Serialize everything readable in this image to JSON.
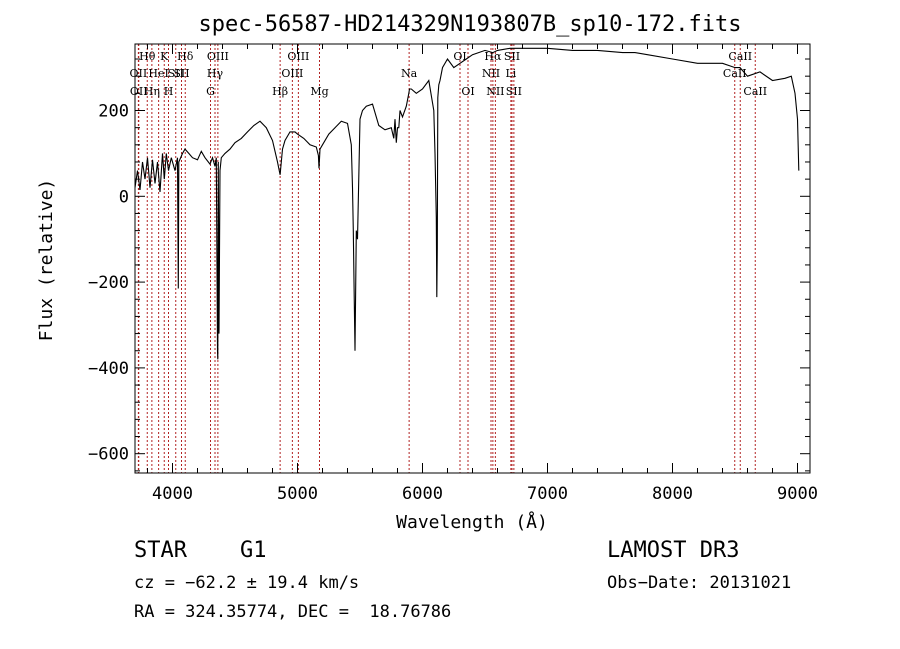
{
  "chart_data": {
    "type": "line",
    "title": "spec-56587-HD214329N193807B_sp10-172.fits",
    "xlabel": "Wavelength (Å)",
    "ylabel": "Flux (relative)",
    "xlim": [
      3700,
      9100
    ],
    "ylim": [
      -645,
      355
    ],
    "x_ticks": [
      4000,
      5000,
      6000,
      7000,
      8000,
      9000
    ],
    "x_tick_labels": [
      "4000",
      "5000",
      "6000",
      "7000",
      "8000",
      "9000"
    ],
    "y_ticks": [
      -600,
      -400,
      -200,
      0,
      200
    ],
    "y_tick_labels": [
      "−600",
      "−400",
      "−200",
      "0",
      "200"
    ],
    "grid": false,
    "series": [
      {
        "x": [
          3700,
          3720,
          3740,
          3760,
          3780,
          3800,
          3820,
          3840,
          3860,
          3880,
          3900,
          3920,
          3934,
          3950,
          3968,
          3990,
          4020,
          4040,
          4046,
          4050,
          4080,
          4100,
          4130,
          4160,
          4200,
          4230,
          4260,
          4300,
          4320,
          4340,
          4350,
          4360,
          4362,
          4366,
          4372,
          4380,
          4390,
          4420,
          4460,
          4500,
          4550,
          4600,
          4650,
          4700,
          4750,
          4800,
          4840,
          4861,
          4880,
          4900,
          4940,
          4980,
          5000,
          5050,
          5100,
          5150,
          5167,
          5172,
          5180,
          5200,
          5250,
          5300,
          5350,
          5400,
          5430,
          5440,
          5446,
          5452,
          5460,
          5470,
          5480,
          5500,
          5520,
          5550,
          5600,
          5650,
          5700,
          5750,
          5770,
          5780,
          5790,
          5800,
          5810,
          5820,
          5840,
          5870,
          5890,
          5896,
          5910,
          5950,
          6000,
          6050,
          6090,
          6100,
          6110,
          6114,
          6118,
          6122,
          6130,
          6140,
          6160,
          6200,
          6250,
          6300,
          6350,
          6400,
          6500,
          6563,
          6600,
          6700,
          6800,
          6900,
          7000,
          7200,
          7400,
          7600,
          7700,
          7800,
          8000,
          8200,
          8400,
          8500,
          8540,
          8600,
          8700,
          8800,
          8900,
          8950,
          8980,
          9000,
          9010
        ],
        "y": [
          20,
          60,
          15,
          80,
          40,
          90,
          20,
          85,
          30,
          80,
          10,
          100,
          40,
          100,
          60,
          90,
          60,
          90,
          -215,
          80,
          100,
          110,
          100,
          90,
          85,
          105,
          90,
          75,
          90,
          70,
          90,
          -360,
          -380,
          80,
          -320,
          60,
          90,
          100,
          110,
          125,
          135,
          150,
          165,
          175,
          160,
          130,
          80,
          50,
          110,
          130,
          150,
          150,
          145,
          135,
          120,
          115,
          95,
          65,
          110,
          120,
          145,
          160,
          175,
          170,
          120,
          20,
          -80,
          -200,
          -360,
          -80,
          -100,
          180,
          200,
          210,
          215,
          165,
          155,
          160,
          135,
          180,
          125,
          160,
          160,
          200,
          185,
          210,
          240,
          250,
          250,
          240,
          250,
          270,
          200,
          100,
          -50,
          -235,
          -120,
          230,
          260,
          270,
          300,
          320,
          300,
          310,
          320,
          330,
          340,
          335,
          340,
          345,
          345,
          345,
          345,
          340,
          340,
          335,
          335,
          330,
          320,
          310,
          310,
          300,
          300,
          280,
          290,
          270,
          275,
          280,
          240,
          180,
          60
        ]
      }
    ],
    "line_markers": [
      {
        "x": 3727,
        "label": "OII",
        "row": 2
      },
      {
        "x": 3730,
        "label": "OII",
        "row": 3
      },
      {
        "x": 3798,
        "label": "Hθ",
        "row": 1
      },
      {
        "x": 3835,
        "label": "Hη",
        "row": 3
      },
      {
        "x": 3889,
        "label": "HeI",
        "row": 2
      },
      {
        "x": 3934,
        "label": "K",
        "row": 1
      },
      {
        "x": 3968,
        "label": "H",
        "row": 3
      },
      {
        "x": 4026,
        "label": "SII",
        "row": 2
      },
      {
        "x": 4072,
        "label": "SII",
        "row": 2
      },
      {
        "x": 4102,
        "label": "Hδ",
        "row": 1
      },
      {
        "x": 4304,
        "label": "G",
        "row": 3
      },
      {
        "x": 4340,
        "label": "Hγ",
        "row": 2
      },
      {
        "x": 4363,
        "label": "OIII",
        "row": 1
      },
      {
        "x": 4861,
        "label": "Hβ",
        "row": 3
      },
      {
        "x": 4959,
        "label": "OIII",
        "row": 2
      },
      {
        "x": 5007,
        "label": "OIII",
        "row": 1
      },
      {
        "x": 5176,
        "label": "Mg",
        "row": 3
      },
      {
        "x": 5893,
        "label": "Na",
        "row": 2
      },
      {
        "x": 6300,
        "label": "OI",
        "row": 1
      },
      {
        "x": 6364,
        "label": "OI",
        "row": 3
      },
      {
        "x": 6548,
        "label": "NII",
        "row": 2
      },
      {
        "x": 6563,
        "label": "Hα",
        "row": 1
      },
      {
        "x": 6583,
        "label": "NII",
        "row": 3
      },
      {
        "x": 6707,
        "label": "Li",
        "row": 2
      },
      {
        "x": 6716,
        "label": "SII",
        "row": 1
      },
      {
        "x": 6731,
        "label": "SII",
        "row": 3
      },
      {
        "x": 8498,
        "label": "CaII",
        "row": 2
      },
      {
        "x": 8542,
        "label": "CaII",
        "row": 1
      },
      {
        "x": 8662,
        "label": "CaII",
        "row": 3
      }
    ]
  },
  "info": {
    "class": "STAR",
    "subclass": "G1",
    "survey": "LAMOST DR3",
    "cz": "cz = −62.2 ± 19.4 km/s",
    "obs_date": "Obs−Date: 20131021",
    "coords": "RA = 324.35774, DEC =  18.76786"
  }
}
